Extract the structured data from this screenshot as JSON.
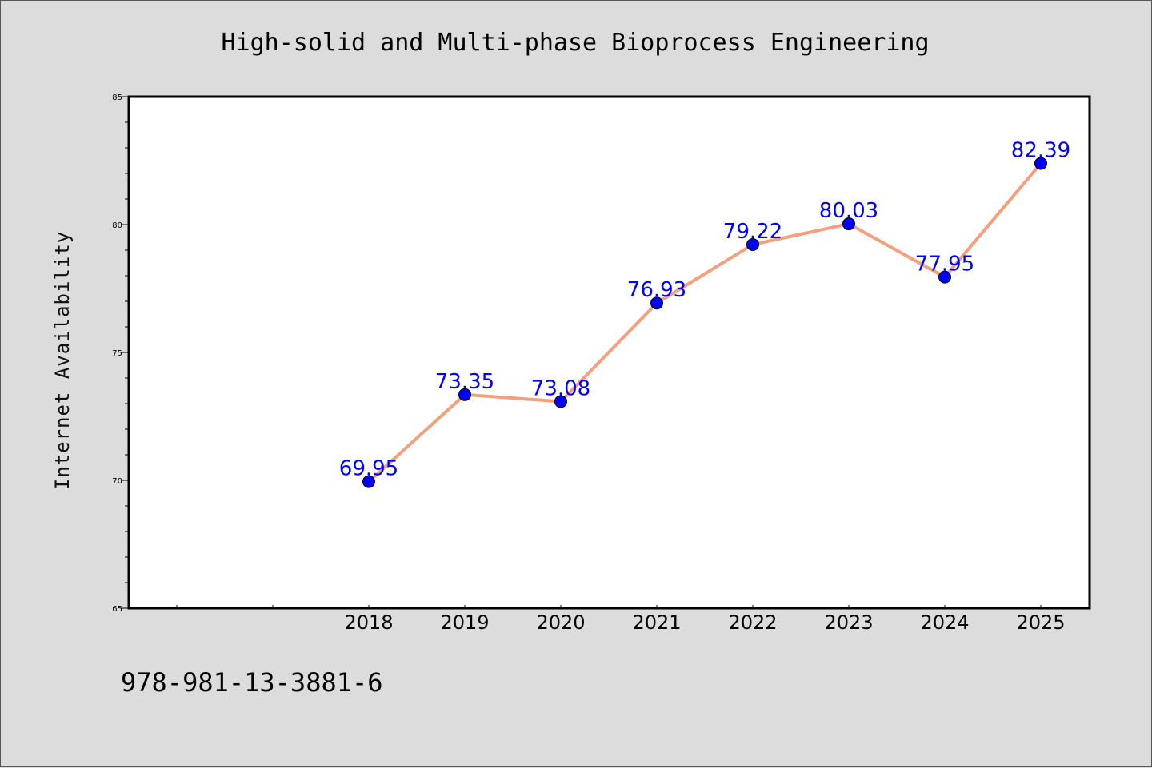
{
  "chart_data": {
    "type": "line",
    "title": "High-solid and Multi-phase Bioprocess Engineering",
    "xlabel": "",
    "ylabel": "Internet Availability",
    "x_ticks": [
      "",
      "",
      "2018",
      "2019",
      "2020",
      "2021",
      "2022",
      "2023",
      "2024",
      "2025"
    ],
    "categories": [
      "2018",
      "2019",
      "2020",
      "2021",
      "2022",
      "2023",
      "2024",
      "2025"
    ],
    "values": [
      69.95,
      73.35,
      73.08,
      76.93,
      79.22,
      80.03,
      77.95,
      82.39
    ],
    "data_labels": [
      "69.95",
      "73.35",
      "73.08",
      "76.93",
      "79.22",
      "80.03",
      "77.95",
      "82.39"
    ],
    "ylim": [
      65,
      85
    ],
    "y_ticks": [
      65,
      70,
      75,
      80,
      85
    ],
    "grid": false,
    "line_color": "#f4a07e",
    "marker_color": "#0000ff",
    "label_color": "#0000ff"
  },
  "footnote": "978-981-13-3881-6"
}
